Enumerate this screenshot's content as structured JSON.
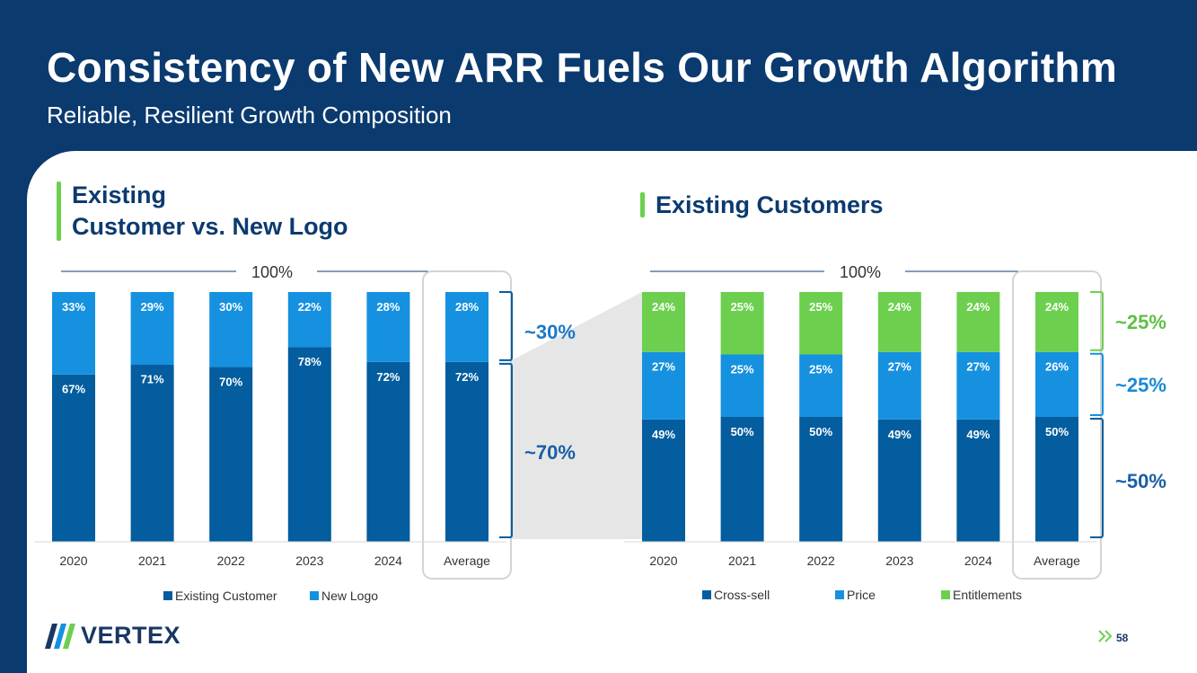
{
  "header": {
    "title": "Consistency of New ARR Fuels Our Growth Algorithm",
    "subtitle": "Reliable, Resilient Growth Composition"
  },
  "left_section": {
    "title_line1": "Existing",
    "title_line2": "Customer vs. New Logo"
  },
  "right_section": {
    "title": "Existing Customers"
  },
  "footer": {
    "logo_text": "VERTEX",
    "page_number": "58"
  },
  "colors": {
    "dark_blue": "#035d9e",
    "light_blue": "#1591e0",
    "green": "#6cd04e",
    "navy": "#0b3a6f"
  },
  "chart_data": [
    {
      "type": "bar",
      "stacked": true,
      "title": "Existing Customer vs. New Logo",
      "total_label": "100%",
      "categories": [
        "2020",
        "2021",
        "2022",
        "2023",
        "2024",
        "Average"
      ],
      "series": [
        {
          "name": "Existing Customer",
          "values": [
            67,
            71,
            70,
            78,
            72,
            72
          ],
          "labels": [
            "67%",
            "71%",
            "70%",
            "78%",
            "72%",
            "72%"
          ]
        },
        {
          "name": "New Logo",
          "values": [
            33,
            29,
            30,
            22,
            28,
            28
          ],
          "labels": [
            "33%",
            "29%",
            "30%",
            "22%",
            "28%",
            "28%"
          ]
        }
      ],
      "annotations": [
        "~30%",
        "~70%"
      ],
      "ylim": [
        0,
        100
      ]
    },
    {
      "type": "bar",
      "stacked": true,
      "title": "Existing Customers",
      "total_label": "100%",
      "categories": [
        "2020",
        "2021",
        "2022",
        "2023",
        "2024",
        "Average"
      ],
      "series": [
        {
          "name": "Cross-sell",
          "values": [
            49,
            50,
            50,
            49,
            49,
            50
          ],
          "labels": [
            "49%",
            "50%",
            "50%",
            "49%",
            "49%",
            "50%"
          ]
        },
        {
          "name": "Price",
          "values": [
            27,
            25,
            25,
            27,
            27,
            26
          ],
          "labels": [
            "27%",
            "25%",
            "25%",
            "27%",
            "27%",
            "26%"
          ]
        },
        {
          "name": "Entitlements",
          "values": [
            24,
            25,
            25,
            24,
            24,
            24
          ],
          "labels": [
            "24%",
            "25%",
            "25%",
            "24%",
            "24%",
            "24%"
          ]
        }
      ],
      "annotations": [
        "~25%",
        "~25%",
        "~50%"
      ],
      "ylim": [
        0,
        100
      ]
    }
  ]
}
